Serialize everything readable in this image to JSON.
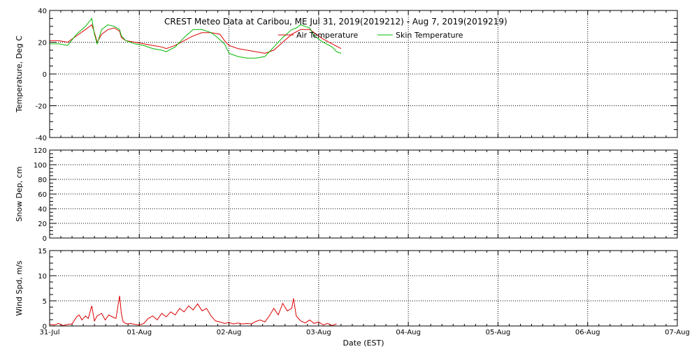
{
  "chart_data": {
    "title": "CREST Meteo Data at Caribou, ME   Jul 31, 2019(2019212) - Aug  7, 2019(2019219)",
    "xlabel": "Date (EST)",
    "x_axis": {
      "type": "time",
      "range_days": [
        0,
        7
      ],
      "ticks": [
        {
          "day": 0,
          "label": "31-Jul"
        },
        {
          "day": 1,
          "label": "01-Aug"
        },
        {
          "day": 2,
          "label": "02-Aug"
        },
        {
          "day": 3,
          "label": "03-Aug"
        },
        {
          "day": 4,
          "label": "04-Aug"
        },
        {
          "day": 5,
          "label": "05-Aug"
        },
        {
          "day": 6,
          "label": "06-Aug"
        },
        {
          "day": 7,
          "label": "07-Aug"
        }
      ]
    },
    "grid": true,
    "panels": [
      {
        "type": "line",
        "ylabel": "Temperature, Deg C",
        "ylim": [
          -40,
          40
        ],
        "yticks": [
          -40,
          -20,
          0,
          20,
          40
        ],
        "legend": [
          {
            "name": "Air Temperature",
            "color": "#dd0000"
          },
          {
            "name": "Skin Temperature",
            "color": "#00bb00"
          }
        ],
        "series": [
          {
            "name": "Air Temperature",
            "color": "#dd0000",
            "points": [
              [
                0,
                21
              ],
              [
                0.1,
                21
              ],
              [
                0.2,
                20
              ],
              [
                0.3,
                24
              ],
              [
                0.4,
                28
              ],
              [
                0.47,
                31
              ],
              [
                0.5,
                26
              ],
              [
                0.53,
                20
              ],
              [
                0.58,
                25
              ],
              [
                0.65,
                28
              ],
              [
                0.72,
                29
              ],
              [
                0.78,
                27
              ],
              [
                0.8,
                23
              ],
              [
                0.85,
                21
              ],
              [
                0.95,
                20
              ],
              [
                1.05,
                19
              ],
              [
                1.15,
                18
              ],
              [
                1.25,
                17
              ],
              [
                1.3,
                16
              ],
              [
                1.4,
                18
              ],
              [
                1.5,
                21
              ],
              [
                1.6,
                24
              ],
              [
                1.7,
                26
              ],
              [
                1.8,
                26
              ],
              [
                1.9,
                25
              ],
              [
                1.95,
                21
              ],
              [
                2.0,
                18
              ],
              [
                2.1,
                16
              ],
              [
                2.2,
                15
              ],
              [
                2.3,
                14
              ],
              [
                2.4,
                13
              ],
              [
                2.5,
                15
              ],
              [
                2.6,
                20
              ],
              [
                2.7,
                25
              ],
              [
                2.8,
                28
              ],
              [
                2.9,
                28
              ],
              [
                2.95,
                26
              ],
              [
                3.05,
                22
              ],
              [
                3.15,
                19
              ],
              [
                3.25,
                16
              ]
            ]
          },
          {
            "name": "Skin Temperature",
            "color": "#00bb00",
            "points": [
              [
                0,
                19
              ],
              [
                0.1,
                19
              ],
              [
                0.2,
                18
              ],
              [
                0.3,
                25
              ],
              [
                0.4,
                30
              ],
              [
                0.47,
                35
              ],
              [
                0.5,
                25
              ],
              [
                0.53,
                19
              ],
              [
                0.58,
                28
              ],
              [
                0.65,
                31
              ],
              [
                0.72,
                30
              ],
              [
                0.78,
                28
              ],
              [
                0.8,
                24
              ],
              [
                0.85,
                21
              ],
              [
                0.95,
                19
              ],
              [
                1.05,
                18
              ],
              [
                1.15,
                16
              ],
              [
                1.25,
                15
              ],
              [
                1.3,
                14
              ],
              [
                1.4,
                17
              ],
              [
                1.5,
                23
              ],
              [
                1.6,
                28
              ],
              [
                1.7,
                28
              ],
              [
                1.8,
                26
              ],
              [
                1.85,
                24
              ],
              [
                1.95,
                19
              ],
              [
                2.0,
                13
              ],
              [
                2.1,
                11
              ],
              [
                2.2,
                10
              ],
              [
                2.3,
                10
              ],
              [
                2.4,
                11
              ],
              [
                2.5,
                17
              ],
              [
                2.6,
                23
              ],
              [
                2.7,
                28
              ],
              [
                2.75,
                29
              ],
              [
                2.8,
                31
              ],
              [
                2.9,
                29
              ],
              [
                2.95,
                24
              ],
              [
                3.05,
                20
              ],
              [
                3.15,
                17
              ],
              [
                3.2,
                14
              ],
              [
                3.25,
                13
              ]
            ]
          }
        ]
      },
      {
        "type": "line",
        "ylabel": "Snow Dep, cm",
        "ylim": [
          0,
          120
        ],
        "yticks": [
          0,
          20,
          40,
          60,
          80,
          100,
          120
        ],
        "series": []
      },
      {
        "type": "line",
        "ylabel": "Wind Spd, m/s",
        "ylim": [
          0,
          15
        ],
        "yticks": [
          0,
          5,
          10,
          15
        ],
        "series": [
          {
            "name": "Wind Speed",
            "color": "#dd0000",
            "points": [
              [
                0,
                0.3
              ],
              [
                0.05,
                0.2
              ],
              [
                0.1,
                0.5
              ],
              [
                0.15,
                0.1
              ],
              [
                0.2,
                0.3
              ],
              [
                0.25,
                0.4
              ],
              [
                0.3,
                1.8
              ],
              [
                0.33,
                2.2
              ],
              [
                0.36,
                1.2
              ],
              [
                0.4,
                2.0
              ],
              [
                0.43,
                1.5
              ],
              [
                0.47,
                4.0
              ],
              [
                0.5,
                1.0
              ],
              [
                0.53,
                2.0
              ],
              [
                0.58,
                2.5
              ],
              [
                0.62,
                1.2
              ],
              [
                0.66,
                2.2
              ],
              [
                0.7,
                1.8
              ],
              [
                0.74,
                1.5
              ],
              [
                0.78,
                6.0
              ],
              [
                0.8,
                2.5
              ],
              [
                0.82,
                0.8
              ],
              [
                0.86,
                0.4
              ],
              [
                0.9,
                0.5
              ],
              [
                0.95,
                0.3
              ],
              [
                1.0,
                0.2
              ],
              [
                1.05,
                0.5
              ],
              [
                1.1,
                1.5
              ],
              [
                1.15,
                2.0
              ],
              [
                1.2,
                1.2
              ],
              [
                1.25,
                2.5
              ],
              [
                1.3,
                1.8
              ],
              [
                1.35,
                2.8
              ],
              [
                1.4,
                2.2
              ],
              [
                1.45,
                3.5
              ],
              [
                1.5,
                2.8
              ],
              [
                1.55,
                4.0
              ],
              [
                1.6,
                3.2
              ],
              [
                1.65,
                4.4
              ],
              [
                1.7,
                3.0
              ],
              [
                1.75,
                3.5
              ],
              [
                1.8,
                2.0
              ],
              [
                1.85,
                1.0
              ],
              [
                1.9,
                0.8
              ],
              [
                1.95,
                0.5
              ],
              [
                2.0,
                0.7
              ],
              [
                2.05,
                0.4
              ],
              [
                2.1,
                0.6
              ],
              [
                2.15,
                0.4
              ],
              [
                2.2,
                0.5
              ],
              [
                2.25,
                0.4
              ],
              [
                2.3,
                0.9
              ],
              [
                2.35,
                1.2
              ],
              [
                2.4,
                0.8
              ],
              [
                2.45,
                2.0
              ],
              [
                2.5,
                3.5
              ],
              [
                2.55,
                2.2
              ],
              [
                2.6,
                4.5
              ],
              [
                2.65,
                3.0
              ],
              [
                2.7,
                3.5
              ],
              [
                2.72,
                5.5
              ],
              [
                2.75,
                2.0
              ],
              [
                2.8,
                1.0
              ],
              [
                2.85,
                0.6
              ],
              [
                2.9,
                1.2
              ],
              [
                2.95,
                0.5
              ],
              [
                3.0,
                0.8
              ],
              [
                3.05,
                0.2
              ],
              [
                3.1,
                0.5
              ],
              [
                3.15,
                0.1
              ],
              [
                3.2,
                0.4
              ]
            ]
          }
        ]
      }
    ]
  }
}
